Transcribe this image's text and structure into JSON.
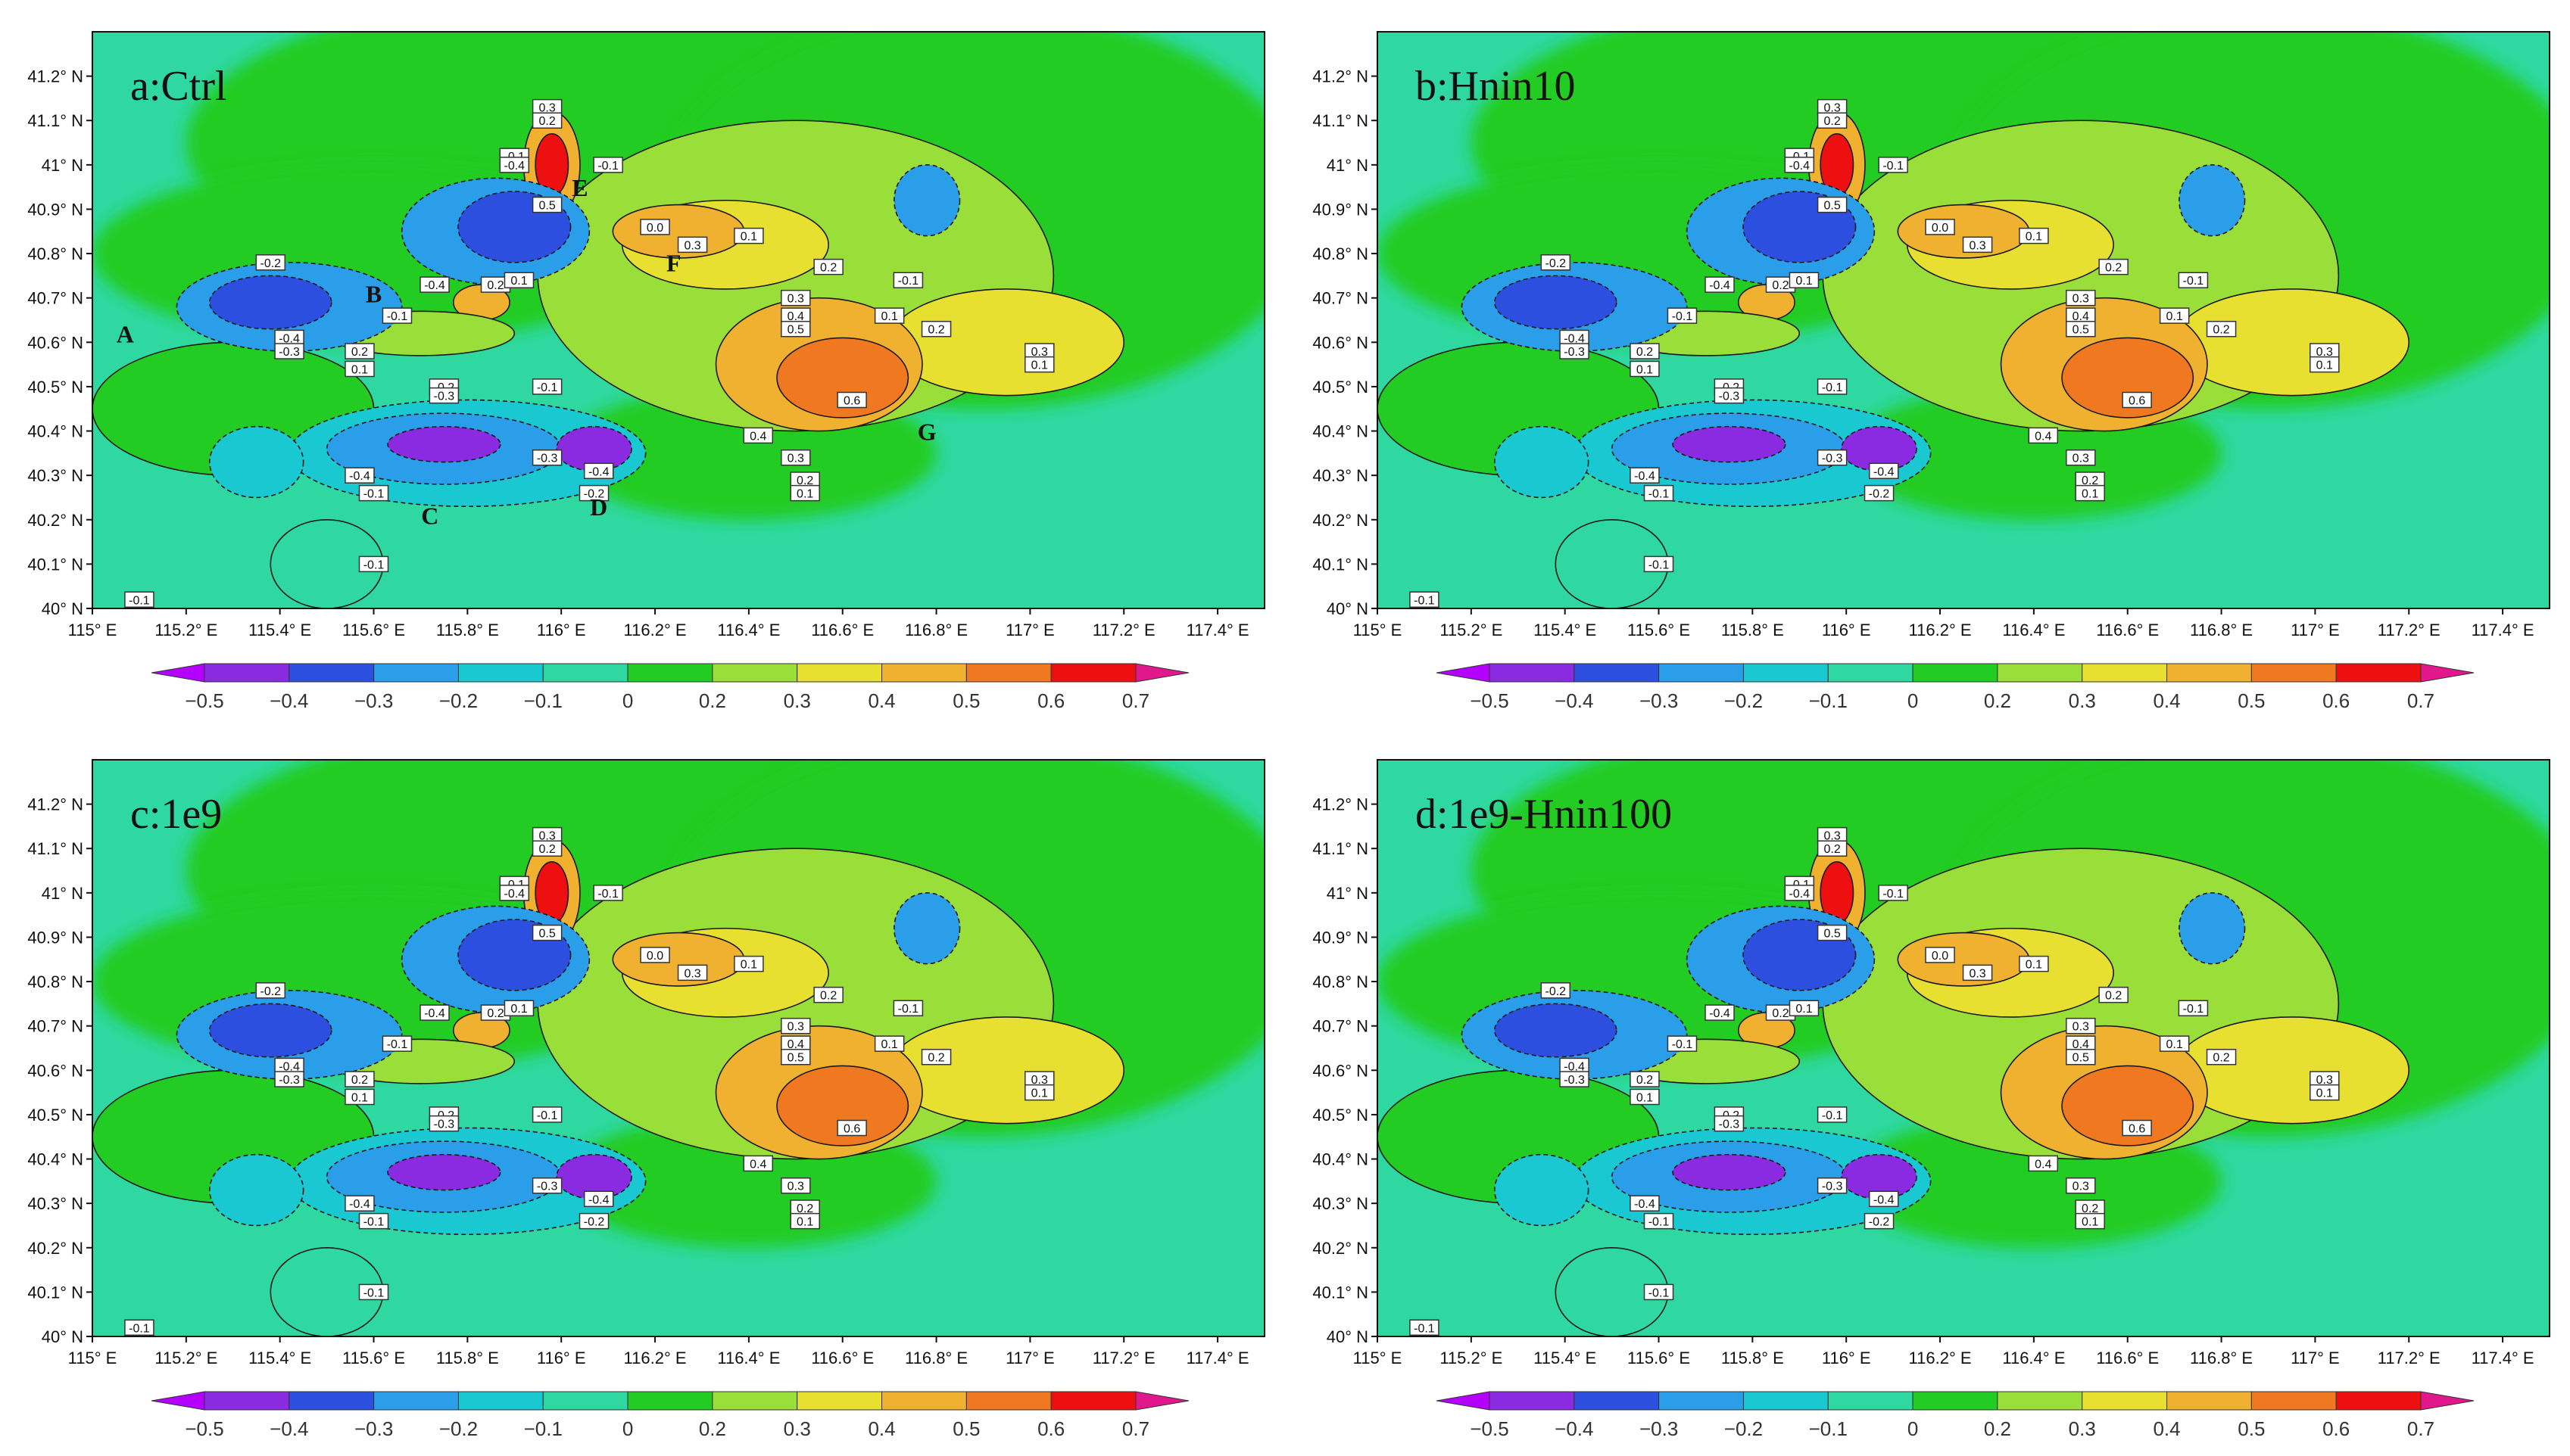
{
  "figure": {
    "panels": [
      {
        "id": "a",
        "title": "a:Ctrl"
      },
      {
        "id": "b",
        "title": "b:Hnin10"
      },
      {
        "id": "c",
        "title": "c:1e9"
      },
      {
        "id": "d",
        "title": "d:1e9-Hnin100"
      }
    ],
    "x_ticks": [
      "115° E",
      "115.2° E",
      "115.4° E",
      "115.6° E",
      "115.8° E",
      "116° E",
      "116.2° E",
      "116.4° E",
      "116.6° E",
      "116.8° E",
      "117° E",
      "117.2° E",
      "117.4° E"
    ],
    "y_ticks": [
      "40° N",
      "40.1° N",
      "40.2° N",
      "40.3° N",
      "40.4° N",
      "40.5° N",
      "40.6° N",
      "40.7° N",
      "40.8° N",
      "40.9° N",
      "41° N",
      "41.1° N",
      "41.2° N"
    ],
    "colorbar": {
      "ticks": [
        "−0.5",
        "−0.4",
        "−0.3",
        "−0.2",
        "−0.1",
        "0",
        "0.2",
        "0.3",
        "0.4",
        "0.5",
        "0.6",
        "0.7"
      ],
      "colors": [
        "#b400ff",
        "#8a2be2",
        "#2d4fe0",
        "#2a9ee8",
        "#19c8d0",
        "#2fd8a0",
        "#22cc22",
        "#9ade3a",
        "#e8e030",
        "#f0b030",
        "#f07820",
        "#ee1010",
        "#e0188c"
      ]
    },
    "sites": [
      "A",
      "B",
      "C",
      "D",
      "E",
      "F",
      "G"
    ],
    "contour_labels": [
      "-0.2",
      "-0.4",
      "-0.3",
      "-0.1",
      "0.2",
      "0.1",
      "0.5",
      "0.3",
      "0.4",
      "0.6",
      "0"
    ]
  }
}
